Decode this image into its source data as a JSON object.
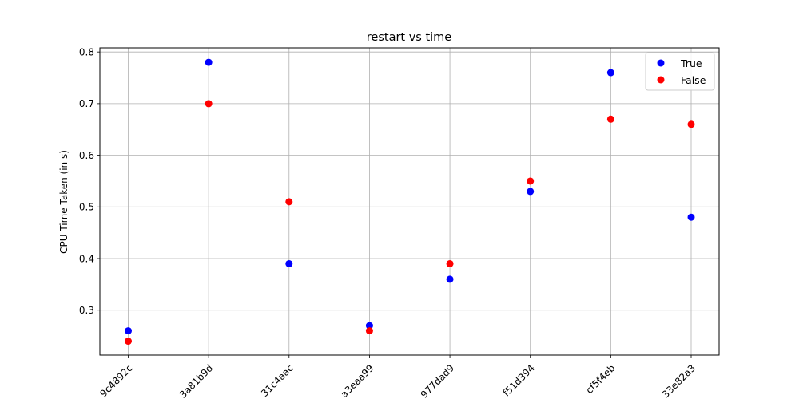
{
  "chart_data": {
    "type": "scatter",
    "title": "restart vs time",
    "xlabel": "",
    "ylabel": "CPU Time Taken (in s)",
    "categories": [
      "9c4892c",
      "3a81b9d",
      "31c4aac",
      "a3eaa99",
      "977dad9",
      "f51d394",
      "cf5f4eb",
      "33e82a3"
    ],
    "ylim": [
      0.213,
      0.808
    ],
    "yticks": [
      0.3,
      0.4,
      0.5,
      0.6,
      0.7,
      0.8
    ],
    "ytick_labels": [
      "0.3",
      "0.4",
      "0.5",
      "0.6",
      "0.7",
      "0.8"
    ],
    "grid": true,
    "legend_position": "top-right",
    "series": [
      {
        "name": "True",
        "color": "#0000ff",
        "values": [
          0.26,
          0.78,
          0.39,
          0.27,
          0.36,
          0.53,
          0.76,
          0.48
        ]
      },
      {
        "name": "False",
        "color": "#ff0000",
        "values": [
          0.24,
          0.7,
          0.51,
          0.26,
          0.39,
          0.55,
          0.67,
          0.66
        ]
      }
    ]
  }
}
